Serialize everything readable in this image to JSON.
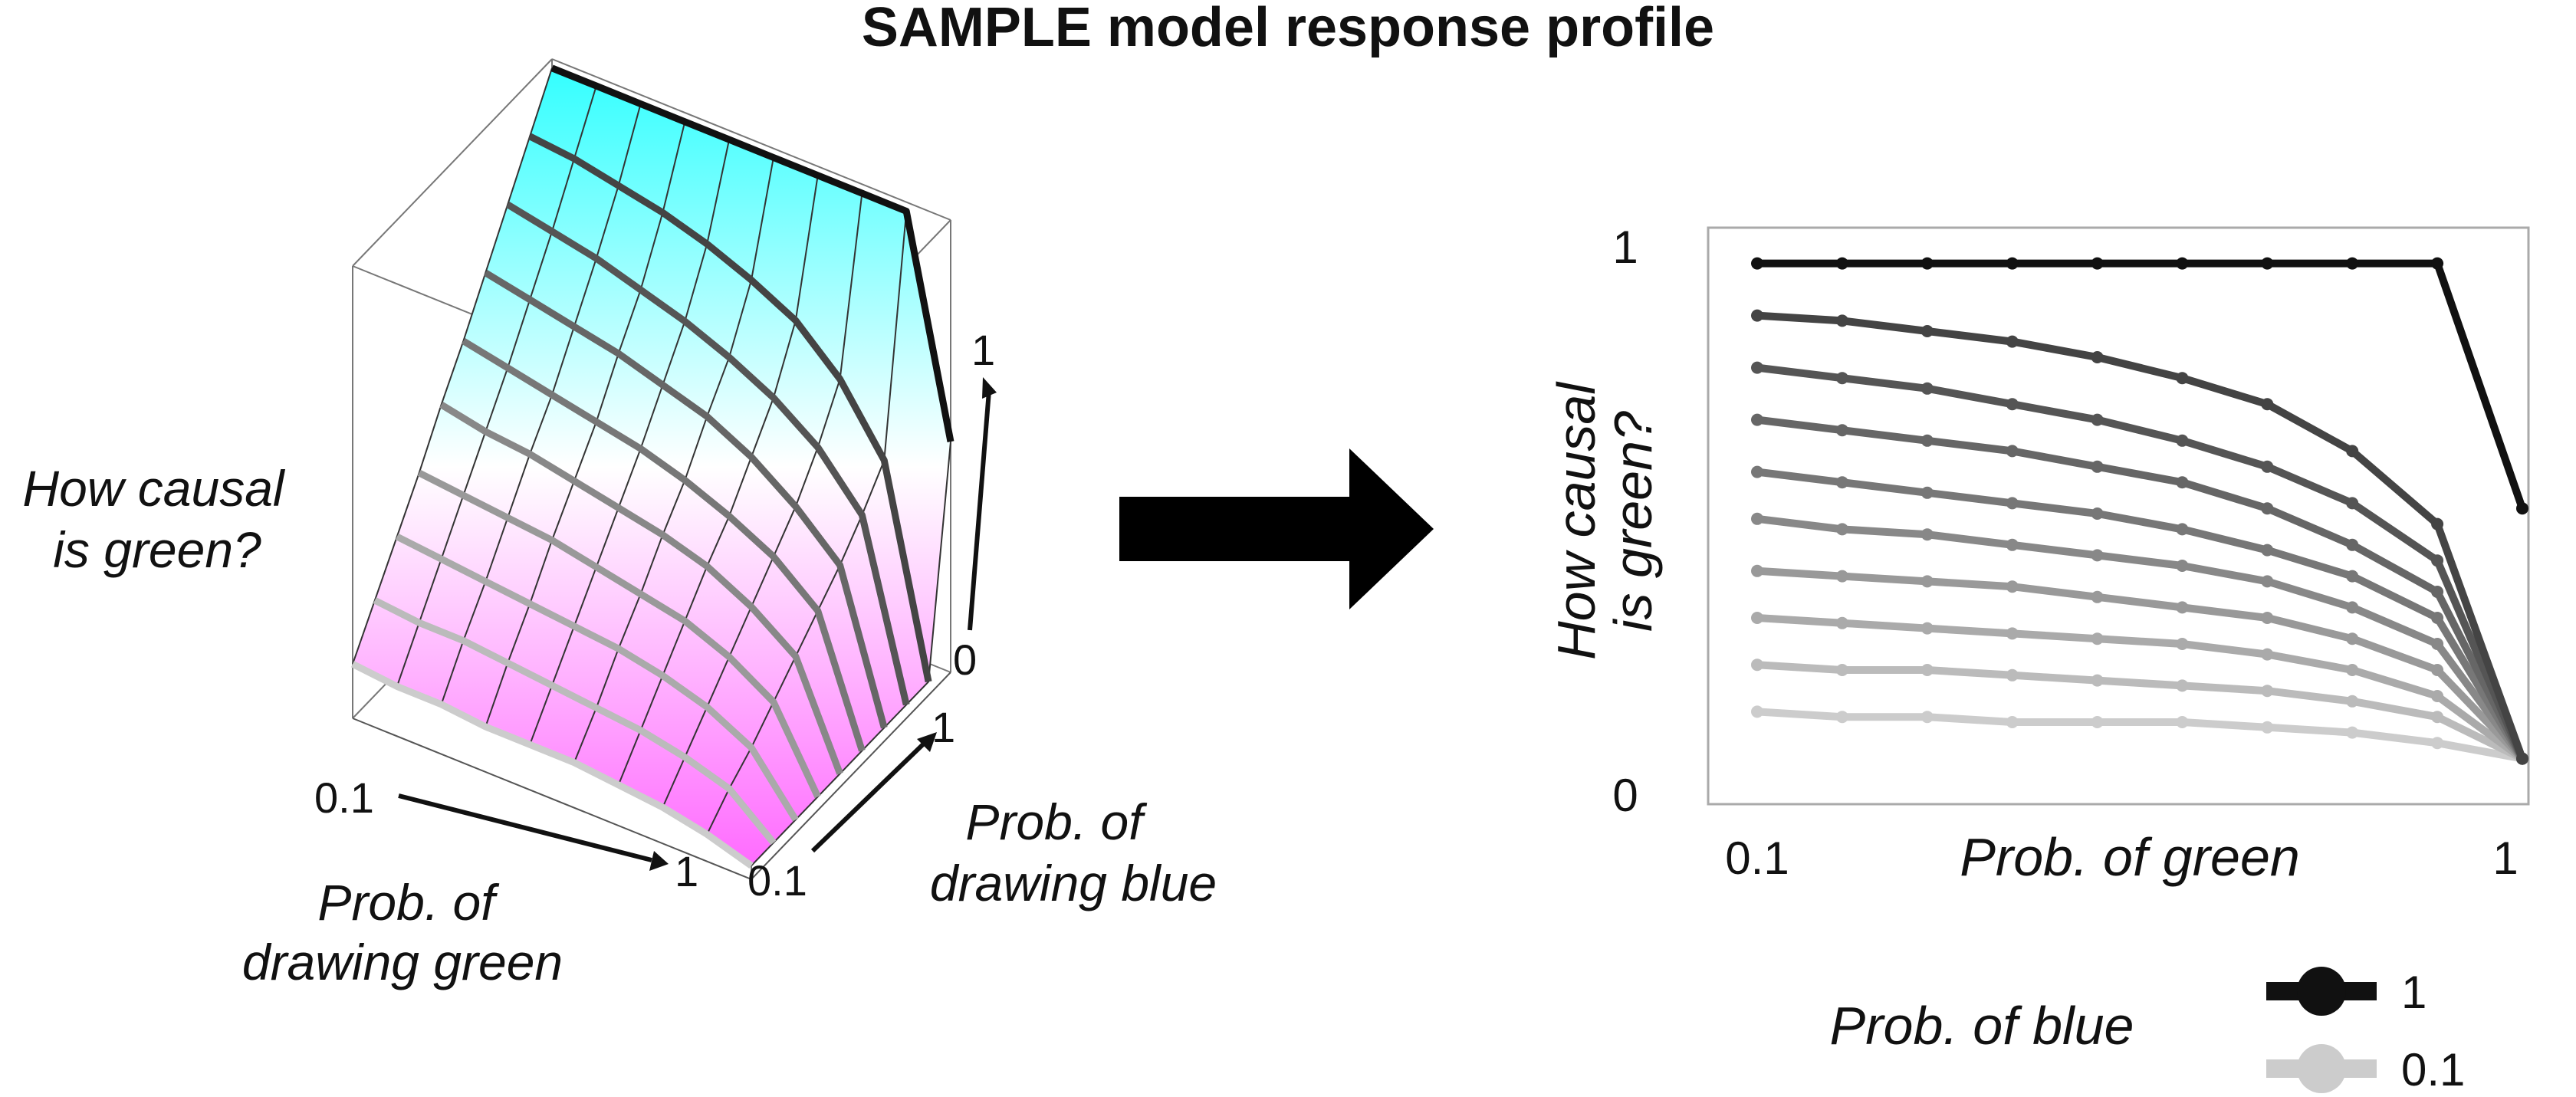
{
  "title": "SAMPLE model response profile",
  "surface": {
    "z_label": [
      "How causal",
      "is green?"
    ],
    "x_label": [
      "Prob. of",
      "drawing green"
    ],
    "y_label": [
      "Prob. of",
      "drawing blue"
    ],
    "x_ticks": [
      "0.1",
      "1"
    ],
    "y_ticks": [
      "0.1",
      "1"
    ],
    "z_ticks": [
      "0",
      "1"
    ],
    "colors": {
      "low": "#ff66ff",
      "mid": "#ffffff",
      "high": "#33ffff"
    }
  },
  "arrow_icon": "right-arrow-icon",
  "chart_data": {
    "type": "line",
    "x": [
      0.1,
      0.2,
      0.3,
      0.4,
      0.5,
      0.6,
      0.7,
      0.8,
      0.9,
      1.0
    ],
    "ylim": [
      0,
      1
    ],
    "xlabel": "Prob. of green",
    "ylabel": "How causal is green?",
    "x_ticks": [
      "0.1",
      "1"
    ],
    "y_ticks": [
      "0",
      "1"
    ],
    "series": [
      {
        "blue": 1.0,
        "color": "#111111",
        "values": [
          0.98,
          0.98,
          0.98,
          0.98,
          0.98,
          0.98,
          0.98,
          0.98,
          0.98,
          0.51
        ]
      },
      {
        "blue": 0.9,
        "color": "#444444",
        "values": [
          0.88,
          0.87,
          0.85,
          0.83,
          0.8,
          0.76,
          0.71,
          0.62,
          0.48,
          0.03
        ]
      },
      {
        "blue": 0.8,
        "color": "#555555",
        "values": [
          0.78,
          0.76,
          0.74,
          0.71,
          0.68,
          0.64,
          0.59,
          0.52,
          0.41,
          0.03
        ]
      },
      {
        "blue": 0.7,
        "color": "#666666",
        "values": [
          0.68,
          0.66,
          0.64,
          0.62,
          0.59,
          0.56,
          0.51,
          0.44,
          0.35,
          0.03
        ]
      },
      {
        "blue": 0.6,
        "color": "#777777",
        "values": [
          0.58,
          0.56,
          0.54,
          0.52,
          0.5,
          0.47,
          0.43,
          0.38,
          0.3,
          0.03
        ]
      },
      {
        "blue": 0.5,
        "color": "#888888",
        "values": [
          0.49,
          0.47,
          0.46,
          0.44,
          0.42,
          0.4,
          0.37,
          0.32,
          0.25,
          0.03
        ]
      },
      {
        "blue": 0.4,
        "color": "#999999",
        "values": [
          0.39,
          0.38,
          0.37,
          0.36,
          0.34,
          0.32,
          0.3,
          0.26,
          0.2,
          0.03
        ]
      },
      {
        "blue": 0.3,
        "color": "#aaaaaa",
        "values": [
          0.3,
          0.29,
          0.28,
          0.27,
          0.26,
          0.25,
          0.23,
          0.2,
          0.15,
          0.03
        ]
      },
      {
        "blue": 0.2,
        "color": "#bbbbbb",
        "values": [
          0.21,
          0.2,
          0.2,
          0.19,
          0.18,
          0.17,
          0.16,
          0.14,
          0.11,
          0.03
        ]
      },
      {
        "blue": 0.1,
        "color": "#cccccc",
        "values": [
          0.12,
          0.11,
          0.11,
          0.1,
          0.1,
          0.1,
          0.09,
          0.08,
          0.06,
          0.03
        ]
      }
    ],
    "legend": {
      "title": "Prob. of blue",
      "entries": [
        {
          "label": "1",
          "color": "#111111"
        },
        {
          "label": "0.1",
          "color": "#cccccc"
        }
      ]
    }
  }
}
